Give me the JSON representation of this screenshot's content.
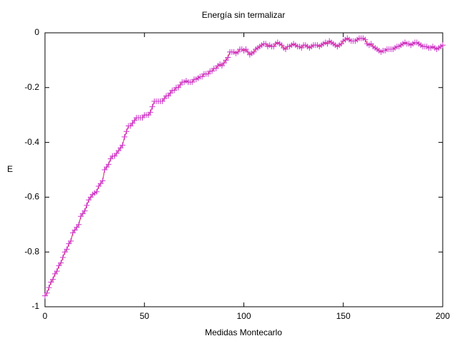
{
  "chart_data": {
    "type": "linepoints",
    "title": "Energía sin termalizar",
    "xlabel": "Medidas Montecarlo",
    "ylabel": "E",
    "x": [
      0,
      1,
      2,
      3,
      4,
      5,
      6,
      7,
      8,
      9,
      10,
      11,
      12,
      13,
      14,
      15,
      16,
      17,
      18,
      19,
      20,
      21,
      22,
      23,
      24,
      25,
      26,
      27,
      28,
      29,
      30,
      31,
      32,
      33,
      34,
      35,
      36,
      37,
      38,
      39,
      40,
      41,
      42,
      43,
      44,
      45,
      46,
      47,
      48,
      49,
      50,
      51,
      52,
      53,
      54,
      55,
      56,
      57,
      58,
      59,
      60,
      61,
      62,
      63,
      64,
      65,
      66,
      67,
      68,
      69,
      70,
      71,
      72,
      73,
      74,
      75,
      76,
      77,
      78,
      79,
      80,
      81,
      82,
      83,
      84,
      85,
      86,
      87,
      88,
      89,
      90,
      91,
      92,
      93,
      94,
      95,
      96,
      97,
      98,
      99,
      100,
      101,
      102,
      103,
      104,
      105,
      106,
      107,
      108,
      109,
      110,
      111,
      112,
      113,
      114,
      115,
      116,
      117,
      118,
      119,
      120,
      121,
      122,
      123,
      124,
      125,
      126,
      127,
      128,
      129,
      130,
      131,
      132,
      133,
      134,
      135,
      136,
      137,
      138,
      139,
      140,
      141,
      142,
      143,
      144,
      145,
      146,
      147,
      148,
      149,
      150,
      151,
      152,
      153,
      154,
      155,
      156,
      157,
      158,
      159,
      160,
      161,
      162,
      163,
      164,
      165,
      166,
      167,
      168,
      169,
      170,
      171,
      172,
      173,
      174,
      175,
      176,
      177,
      178,
      179,
      180,
      181,
      182,
      183,
      184,
      185,
      186,
      187,
      188,
      189,
      190,
      191,
      192,
      193,
      194,
      195,
      196,
      197,
      198,
      199,
      200
    ],
    "series": [
      {
        "color": "#cc33cc",
        "line_color": "#e0204a",
        "values": [
          -0.96,
          -0.95,
          -0.93,
          -0.91,
          -0.9,
          -0.88,
          -0.87,
          -0.85,
          -0.84,
          -0.82,
          -0.8,
          -0.79,
          -0.77,
          -0.76,
          -0.73,
          -0.72,
          -0.71,
          -0.7,
          -0.67,
          -0.66,
          -0.65,
          -0.63,
          -0.61,
          -0.6,
          -0.59,
          -0.585,
          -0.58,
          -0.56,
          -0.55,
          -0.54,
          -0.5,
          -0.49,
          -0.48,
          -0.46,
          -0.45,
          -0.45,
          -0.44,
          -0.43,
          -0.42,
          -0.41,
          -0.38,
          -0.36,
          -0.34,
          -0.34,
          -0.33,
          -0.32,
          -0.31,
          -0.31,
          -0.31,
          -0.31,
          -0.3,
          -0.3,
          -0.3,
          -0.29,
          -0.27,
          -0.25,
          -0.25,
          -0.25,
          -0.25,
          -0.25,
          -0.24,
          -0.23,
          -0.23,
          -0.22,
          -0.21,
          -0.21,
          -0.2,
          -0.2,
          -0.19,
          -0.18,
          -0.18,
          -0.175,
          -0.18,
          -0.18,
          -0.18,
          -0.17,
          -0.17,
          -0.165,
          -0.16,
          -0.16,
          -0.15,
          -0.15,
          -0.15,
          -0.14,
          -0.14,
          -0.13,
          -0.13,
          -0.12,
          -0.115,
          -0.12,
          -0.11,
          -0.1,
          -0.09,
          -0.07,
          -0.07,
          -0.07,
          -0.075,
          -0.07,
          -0.06,
          -0.06,
          -0.065,
          -0.06,
          -0.07,
          -0.08,
          -0.075,
          -0.07,
          -0.06,
          -0.055,
          -0.05,
          -0.045,
          -0.04,
          -0.04,
          -0.05,
          -0.045,
          -0.05,
          -0.05,
          -0.04,
          -0.035,
          -0.04,
          -0.045,
          -0.055,
          -0.06,
          -0.05,
          -0.05,
          -0.045,
          -0.04,
          -0.045,
          -0.05,
          -0.05,
          -0.055,
          -0.045,
          -0.045,
          -0.05,
          -0.055,
          -0.05,
          -0.045,
          -0.045,
          -0.045,
          -0.05,
          -0.045,
          -0.04,
          -0.035,
          -0.04,
          -0.03,
          -0.035,
          -0.04,
          -0.045,
          -0.05,
          -0.045,
          -0.04,
          -0.03,
          -0.025,
          -0.02,
          -0.025,
          -0.03,
          -0.03,
          -0.03,
          -0.025,
          -0.02,
          -0.02,
          -0.02,
          -0.025,
          -0.04,
          -0.045,
          -0.04,
          -0.05,
          -0.055,
          -0.06,
          -0.065,
          -0.07,
          -0.065,
          -0.065,
          -0.06,
          -0.06,
          -0.06,
          -0.06,
          -0.055,
          -0.05,
          -0.05,
          -0.045,
          -0.04,
          -0.035,
          -0.04,
          -0.04,
          -0.045,
          -0.04,
          -0.035,
          -0.035,
          -0.04,
          -0.045,
          -0.05,
          -0.05,
          -0.05,
          -0.055,
          -0.055,
          -0.05,
          -0.055,
          -0.06,
          -0.055,
          -0.05,
          -0.045
        ]
      }
    ],
    "xlim": [
      0,
      200
    ],
    "ylim": [
      -1,
      0
    ],
    "xticks": [
      0,
      50,
      100,
      150,
      200
    ],
    "yticks": [
      0,
      -0.2,
      -0.4,
      -0.6,
      -0.8,
      -1
    ]
  }
}
